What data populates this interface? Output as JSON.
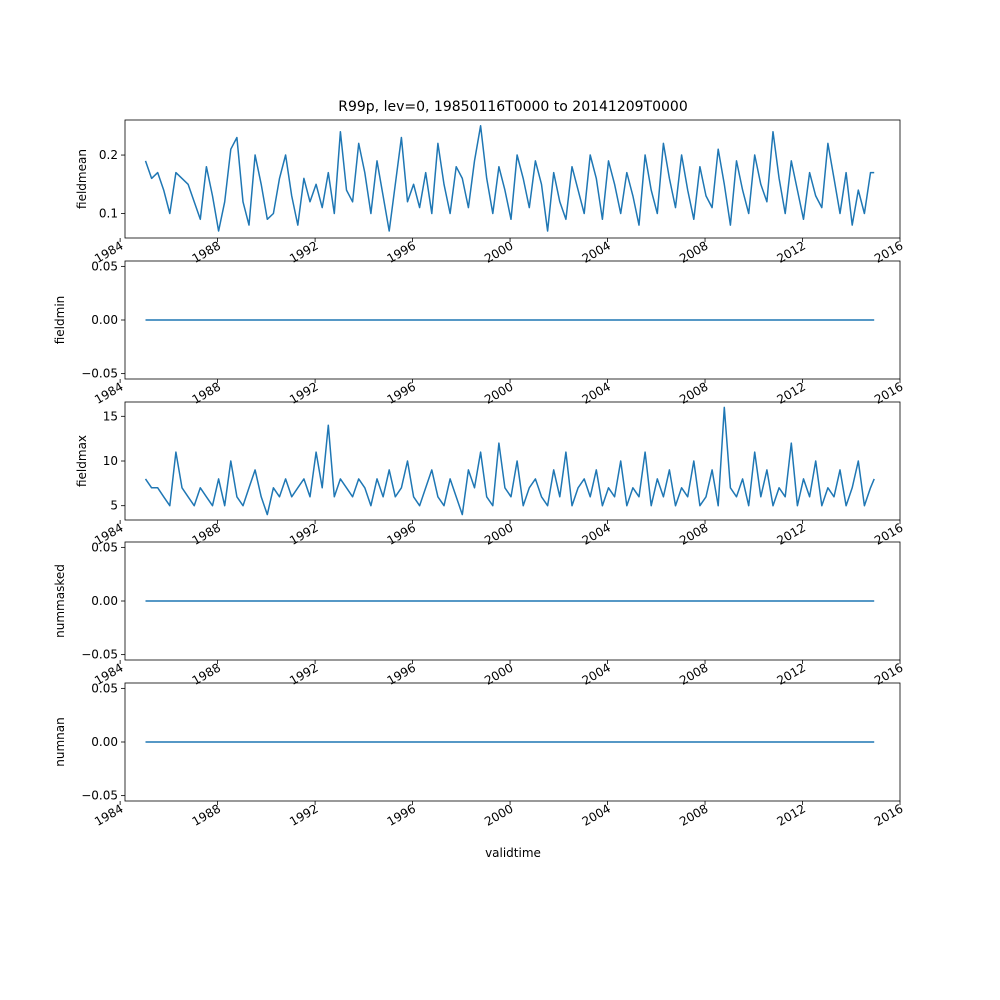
{
  "title": "R99p, lev=0, 19850116T0000 to 20141209T0000",
  "xlabel": "validtime",
  "line_color": "#1f77b4",
  "chart_data": [
    {
      "type": "line",
      "ylabel": "fieldmean",
      "xlim": [
        1984.2,
        2016.0
      ],
      "ylim": [
        0.058,
        0.26
      ],
      "xticks": [
        1984,
        1988,
        1992,
        1996,
        2000,
        2004,
        2008,
        2012,
        2016
      ],
      "yticks": [
        0.1,
        0.2
      ],
      "ytick_labels": [
        "0.1",
        "0.2"
      ],
      "series": [
        {
          "x": [
            1985.04,
            1985.29,
            1985.54,
            1985.79,
            1986.04,
            1986.29,
            1986.54,
            1986.79,
            1987.04,
            1987.29,
            1987.54,
            1987.79,
            1988.04,
            1988.29,
            1988.54,
            1988.79,
            1989.04,
            1989.29,
            1989.54,
            1989.79,
            1990.04,
            1990.29,
            1990.54,
            1990.79,
            1991.04,
            1991.29,
            1991.54,
            1991.79,
            1992.04,
            1992.29,
            1992.54,
            1992.79,
            1993.04,
            1993.29,
            1993.54,
            1993.79,
            1994.04,
            1994.29,
            1994.54,
            1994.79,
            1995.04,
            1995.29,
            1995.54,
            1995.79,
            1996.04,
            1996.29,
            1996.54,
            1996.79,
            1997.04,
            1997.29,
            1997.54,
            1997.79,
            1998.04,
            1998.29,
            1998.54,
            1998.79,
            1999.04,
            1999.29,
            1999.54,
            1999.79,
            2000.04,
            2000.29,
            2000.54,
            2000.79,
            2001.04,
            2001.29,
            2001.54,
            2001.79,
            2002.04,
            2002.29,
            2002.54,
            2002.79,
            2003.04,
            2003.29,
            2003.54,
            2003.79,
            2004.04,
            2004.29,
            2004.54,
            2004.79,
            2005.04,
            2005.29,
            2005.54,
            2005.79,
            2006.04,
            2006.29,
            2006.54,
            2006.79,
            2007.04,
            2007.29,
            2007.54,
            2007.79,
            2008.04,
            2008.29,
            2008.54,
            2008.79,
            2009.04,
            2009.29,
            2009.54,
            2009.79,
            2010.04,
            2010.29,
            2010.54,
            2010.79,
            2011.04,
            2011.29,
            2011.54,
            2011.79,
            2012.04,
            2012.29,
            2012.54,
            2012.79,
            2013.04,
            2013.29,
            2013.54,
            2013.79,
            2014.04,
            2014.29,
            2014.54,
            2014.79,
            2014.94
          ],
          "values": [
            0.19,
            0.16,
            0.17,
            0.14,
            0.1,
            0.17,
            0.16,
            0.15,
            0.12,
            0.09,
            0.18,
            0.13,
            0.07,
            0.12,
            0.21,
            0.23,
            0.12,
            0.08,
            0.2,
            0.15,
            0.09,
            0.1,
            0.16,
            0.2,
            0.13,
            0.08,
            0.16,
            0.12,
            0.15,
            0.11,
            0.17,
            0.1,
            0.24,
            0.14,
            0.12,
            0.22,
            0.17,
            0.1,
            0.19,
            0.13,
            0.07,
            0.15,
            0.23,
            0.12,
            0.15,
            0.11,
            0.17,
            0.1,
            0.22,
            0.15,
            0.1,
            0.18,
            0.16,
            0.11,
            0.19,
            0.25,
            0.16,
            0.1,
            0.18,
            0.14,
            0.09,
            0.2,
            0.16,
            0.11,
            0.19,
            0.15,
            0.07,
            0.17,
            0.12,
            0.09,
            0.18,
            0.14,
            0.1,
            0.2,
            0.16,
            0.09,
            0.19,
            0.15,
            0.1,
            0.17,
            0.13,
            0.08,
            0.2,
            0.14,
            0.1,
            0.22,
            0.16,
            0.11,
            0.2,
            0.14,
            0.09,
            0.18,
            0.13,
            0.11,
            0.21,
            0.15,
            0.08,
            0.19,
            0.14,
            0.1,
            0.2,
            0.15,
            0.12,
            0.24,
            0.16,
            0.1,
            0.19,
            0.14,
            0.09,
            0.17,
            0.13,
            0.11,
            0.22,
            0.16,
            0.1,
            0.17,
            0.08,
            0.14,
            0.1,
            0.17,
            0.17
          ]
        }
      ]
    },
    {
      "type": "line",
      "ylabel": "fieldmin",
      "xlim": [
        1984.2,
        2016.0
      ],
      "ylim": [
        -0.055,
        0.055
      ],
      "xticks": [
        1984,
        1988,
        1992,
        1996,
        2000,
        2004,
        2008,
        2012,
        2016
      ],
      "yticks": [
        -0.05,
        0.0,
        0.05
      ],
      "ytick_labels": [
        "−0.05",
        "0.00",
        "0.05"
      ],
      "series": [
        {
          "x": [
            1985.04,
            2014.94
          ],
          "values": [
            0,
            0
          ]
        }
      ]
    },
    {
      "type": "line",
      "ylabel": "fieldmax",
      "xlim": [
        1984.2,
        2016.0
      ],
      "ylim": [
        3.4,
        16.6
      ],
      "xticks": [
        1984,
        1988,
        1992,
        1996,
        2000,
        2004,
        2008,
        2012,
        2016
      ],
      "yticks": [
        5,
        10,
        15
      ],
      "ytick_labels": [
        "5",
        "10",
        "15"
      ],
      "series": [
        {
          "x": [
            1985.04,
            1985.29,
            1985.54,
            1985.79,
            1986.04,
            1986.29,
            1986.54,
            1986.79,
            1987.04,
            1987.29,
            1987.54,
            1987.79,
            1988.04,
            1988.29,
            1988.54,
            1988.79,
            1989.04,
            1989.29,
            1989.54,
            1989.79,
            1990.04,
            1990.29,
            1990.54,
            1990.79,
            1991.04,
            1991.29,
            1991.54,
            1991.79,
            1992.04,
            1992.29,
            1992.54,
            1992.79,
            1993.04,
            1993.29,
            1993.54,
            1993.79,
            1994.04,
            1994.29,
            1994.54,
            1994.79,
            1995.04,
            1995.29,
            1995.54,
            1995.79,
            1996.04,
            1996.29,
            1996.54,
            1996.79,
            1997.04,
            1997.29,
            1997.54,
            1997.79,
            1998.04,
            1998.29,
            1998.54,
            1998.79,
            1999.04,
            1999.29,
            1999.54,
            1999.79,
            2000.04,
            2000.29,
            2000.54,
            2000.79,
            2001.04,
            2001.29,
            2001.54,
            2001.79,
            2002.04,
            2002.29,
            2002.54,
            2002.79,
            2003.04,
            2003.29,
            2003.54,
            2003.79,
            2004.04,
            2004.29,
            2004.54,
            2004.79,
            2005.04,
            2005.29,
            2005.54,
            2005.79,
            2006.04,
            2006.29,
            2006.54,
            2006.79,
            2007.04,
            2007.29,
            2007.54,
            2007.79,
            2008.04,
            2008.29,
            2008.54,
            2008.79,
            2009.04,
            2009.29,
            2009.54,
            2009.79,
            2010.04,
            2010.29,
            2010.54,
            2010.79,
            2011.04,
            2011.29,
            2011.54,
            2011.79,
            2012.04,
            2012.29,
            2012.54,
            2012.79,
            2013.04,
            2013.29,
            2013.54,
            2013.79,
            2014.04,
            2014.29,
            2014.54,
            2014.79,
            2014.94
          ],
          "values": [
            8,
            7,
            7,
            6,
            5,
            11,
            7,
            6,
            5,
            7,
            6,
            5,
            8,
            5,
            10,
            6,
            5,
            7,
            9,
            6,
            4,
            7,
            6,
            8,
            6,
            7,
            8,
            6,
            11,
            7,
            14,
            6,
            8,
            7,
            6,
            8,
            7,
            5,
            8,
            6,
            9,
            6,
            7,
            10,
            6,
            5,
            7,
            9,
            6,
            5,
            8,
            6,
            4,
            9,
            7,
            11,
            6,
            5,
            12,
            7,
            6,
            10,
            5,
            7,
            8,
            6,
            5,
            9,
            6,
            11,
            5,
            7,
            8,
            6,
            9,
            5,
            7,
            6,
            10,
            5,
            7,
            6,
            11,
            5,
            8,
            6,
            9,
            5,
            7,
            6,
            10,
            5,
            6,
            9,
            5,
            16,
            7,
            6,
            8,
            5,
            11,
            6,
            9,
            5,
            7,
            6,
            12,
            5,
            8,
            6,
            10,
            5,
            7,
            6,
            9,
            5,
            7,
            10,
            5,
            7,
            8
          ]
        }
      ]
    },
    {
      "type": "line",
      "ylabel": "nummasked",
      "xlim": [
        1984.2,
        2016.0
      ],
      "ylim": [
        -0.055,
        0.055
      ],
      "xticks": [
        1984,
        1988,
        1992,
        1996,
        2000,
        2004,
        2008,
        2012,
        2016
      ],
      "yticks": [
        -0.05,
        0.0,
        0.05
      ],
      "ytick_labels": [
        "−0.05",
        "0.00",
        "0.05"
      ],
      "series": [
        {
          "x": [
            1985.04,
            2014.94
          ],
          "values": [
            0,
            0
          ]
        }
      ]
    },
    {
      "type": "line",
      "ylabel": "numnan",
      "xlim": [
        1984.2,
        2016.0
      ],
      "ylim": [
        -0.055,
        0.055
      ],
      "xticks": [
        1984,
        1988,
        1992,
        1996,
        2000,
        2004,
        2008,
        2012,
        2016
      ],
      "yticks": [
        -0.05,
        0.0,
        0.05
      ],
      "ytick_labels": [
        "−0.05",
        "0.00",
        "0.05"
      ],
      "series": [
        {
          "x": [
            1985.04,
            2014.94
          ],
          "values": [
            0,
            0
          ]
        }
      ]
    }
  ]
}
